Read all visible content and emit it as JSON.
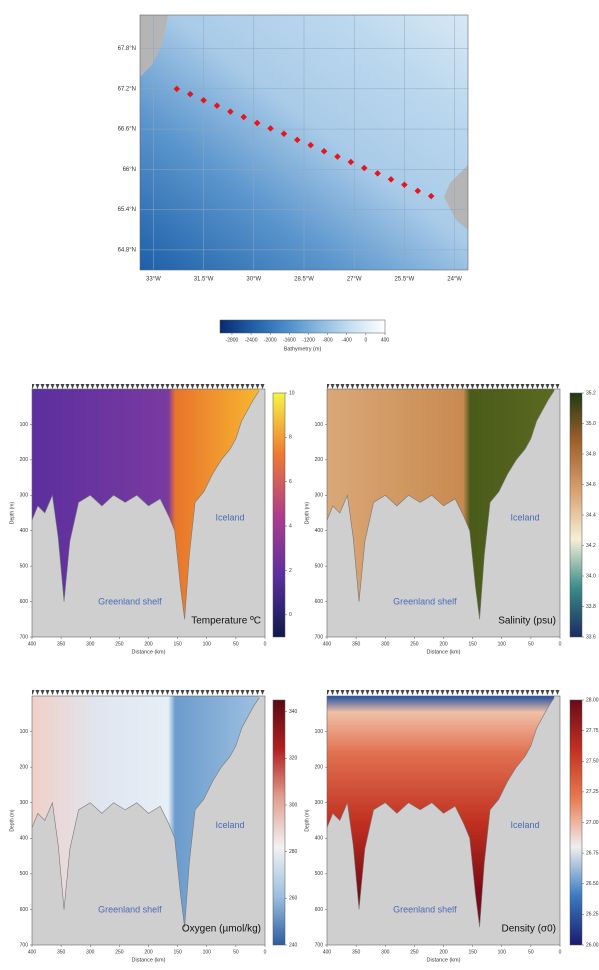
{
  "chart_data": [
    {
      "type": "map",
      "xlim": [
        -33.4,
        -23.6
      ],
      "ylim": [
        64.5,
        68.3
      ],
      "grid": true,
      "color": "#e8141c",
      "xticks": [
        {
          "value": -33,
          "label": "33°W"
        },
        {
          "value": -31.5,
          "label": "31.5°W"
        },
        {
          "value": -30,
          "label": "30°W"
        },
        {
          "value": -28.5,
          "label": "28.5°W"
        },
        {
          "value": -27,
          "label": "27°W"
        },
        {
          "value": -25.5,
          "label": "25.5°W"
        },
        {
          "value": -24,
          "label": "24°W"
        }
      ],
      "yticks": [
        {
          "value": 64.8,
          "label": "64.8°N"
        },
        {
          "value": 65.4,
          "label": "65.4°N"
        },
        {
          "value": 66,
          "label": "66°N"
        },
        {
          "value": 66.6,
          "label": "66.6°N"
        },
        {
          "value": 67.2,
          "label": "67.2°N"
        },
        {
          "value": 67.8,
          "label": "67.8°N"
        }
      ],
      "stations": {
        "lon": [
          -32.3,
          -31.9,
          -31.5,
          -31.1,
          -30.7,
          -30.3,
          -29.9,
          -29.5,
          -29.1,
          -28.7,
          -28.3,
          -27.9,
          -27.5,
          -27.1,
          -26.7,
          -26.3,
          -25.9,
          -25.5,
          -25.1,
          -24.7
        ],
        "lat": [
          67.2,
          67.12,
          67.03,
          66.95,
          66.86,
          66.78,
          66.69,
          66.61,
          66.53,
          66.44,
          66.36,
          66.27,
          66.19,
          66.11,
          66.02,
          65.94,
          65.85,
          65.77,
          65.68,
          65.6
        ]
      }
    },
    {
      "type": "colorbar",
      "title": "Bathymetry (m)",
      "clim": [
        -3050,
        400
      ],
      "ticks": [
        -2800,
        -2400,
        -2000,
        -1600,
        -1200,
        -800,
        -400,
        0,
        400
      ],
      "colors": [
        "#0a2a6e",
        "#1f5fa8",
        "#4a8cc8",
        "#8ab8e0",
        "#c8e0f2",
        "#ffffff"
      ]
    },
    {
      "type": "section",
      "title": "Temperature ºC",
      "xlabel": "Distance (km)",
      "ylabel": "Depth (m)",
      "labels": [
        "Greenland shelf",
        "Iceland"
      ],
      "xlim": [
        400,
        0
      ],
      "ylim": [
        700,
        0
      ],
      "xticks": [
        400,
        350,
        300,
        250,
        200,
        150,
        100,
        50,
        0
      ],
      "yticks": [
        100,
        200,
        300,
        400,
        500,
        600,
        700
      ],
      "bottom": {
        "distance": [
          400,
          390,
          378,
          365,
          355,
          345,
          335,
          320,
          300,
          280,
          260,
          240,
          220,
          200,
          180,
          165,
          155,
          145,
          138,
          130,
          120,
          105,
          90,
          75,
          60,
          50,
          40,
          30,
          20,
          10
        ],
        "depth": [
          370,
          330,
          350,
          300,
          420,
          600,
          430,
          320,
          300,
          330,
          300,
          320,
          300,
          330,
          310,
          360,
          400,
          560,
          650,
          470,
          320,
          290,
          240,
          200,
          170,
          140,
          90,
          60,
          30,
          5
        ]
      },
      "clim": [
        -1,
        10
      ],
      "cticks": [
        0,
        2,
        4,
        6,
        8,
        10
      ],
      "colors": [
        "#0d1a4a",
        "#5b2fa0",
        "#b03c8c",
        "#f07a30",
        "#f5f542"
      ]
    },
    {
      "type": "section",
      "title": "Salinity (psu)",
      "xlabel": "Distance (km)",
      "ylabel": "Depth (m)",
      "labels": [
        "Greenland shelf",
        "Iceland"
      ],
      "xlim": [
        400,
        0
      ],
      "ylim": [
        700,
        0
      ],
      "xticks": [
        400,
        350,
        300,
        250,
        200,
        150,
        100,
        50,
        0
      ],
      "yticks": [
        100,
        200,
        300,
        400,
        500,
        600,
        700
      ],
      "bottom": {
        "distance": [
          400,
          390,
          378,
          365,
          355,
          345,
          335,
          320,
          300,
          280,
          260,
          240,
          220,
          200,
          180,
          165,
          155,
          145,
          138,
          130,
          120,
          105,
          90,
          75,
          60,
          50,
          40,
          30,
          20,
          10
        ],
        "depth": [
          370,
          330,
          350,
          300,
          420,
          600,
          430,
          320,
          300,
          330,
          300,
          320,
          300,
          330,
          310,
          360,
          400,
          560,
          650,
          470,
          320,
          290,
          240,
          200,
          170,
          140,
          90,
          60,
          30,
          5
        ]
      },
      "clim": [
        33.6,
        35.2
      ],
      "cticks": [
        33.6,
        33.8,
        {
          "value": 34,
          "label": "34.0"
        },
        34.2,
        34.4,
        34.6,
        34.8,
        {
          "value": 35,
          "label": "35.0"
        },
        35.2
      ],
      "colors": [
        "#1b2a5e",
        "#3a8a8a",
        "#f5efd5",
        "#d9a070",
        "#a0602a",
        "#1f3a12"
      ]
    },
    {
      "type": "section",
      "title": "Oxygen (µmol/kg)",
      "xlabel": "Distance (km)",
      "ylabel": "Depth (m)",
      "labels": [
        "Greenland shelf",
        "Iceland"
      ],
      "xlim": [
        400,
        0
      ],
      "ylim": [
        700,
        0
      ],
      "xticks": [
        400,
        350,
        300,
        250,
        200,
        150,
        100,
        50,
        0
      ],
      "yticks": [
        100,
        200,
        300,
        400,
        500,
        600,
        700
      ],
      "bottom": {
        "distance": [
          400,
          390,
          378,
          365,
          355,
          345,
          335,
          320,
          300,
          280,
          260,
          240,
          220,
          200,
          180,
          165,
          155,
          145,
          138,
          130,
          120,
          105,
          90,
          75,
          60,
          50,
          40,
          30,
          20,
          10
        ],
        "depth": [
          370,
          330,
          350,
          300,
          420,
          600,
          430,
          320,
          300,
          330,
          300,
          320,
          300,
          330,
          310,
          360,
          400,
          560,
          650,
          470,
          320,
          290,
          240,
          200,
          170,
          140,
          90,
          60,
          30,
          5
        ]
      },
      "clim": [
        240,
        345
      ],
      "cticks": [
        240,
        260,
        280,
        300,
        320,
        340
      ],
      "colors": [
        "#2c5d9e",
        "#9cc0e0",
        "#f2f2f2",
        "#e0a090",
        "#b32020",
        "#5a0a15"
      ]
    },
    {
      "type": "section",
      "title": "Density (σ0)",
      "xlabel": "Distance (km)",
      "ylabel": "Depth (m)",
      "labels": [
        "Greenland shelf",
        "Iceland"
      ],
      "xlim": [
        400,
        0
      ],
      "ylim": [
        700,
        0
      ],
      "xticks": [
        400,
        350,
        300,
        250,
        200,
        150,
        100,
        50,
        0
      ],
      "yticks": [
        100,
        200,
        300,
        400,
        500,
        600,
        700
      ],
      "bottom": {
        "distance": [
          400,
          390,
          378,
          365,
          355,
          345,
          335,
          320,
          300,
          280,
          260,
          240,
          220,
          200,
          180,
          165,
          155,
          145,
          138,
          130,
          120,
          105,
          90,
          75,
          60,
          50,
          40,
          30,
          20,
          10
        ],
        "depth": [
          370,
          330,
          350,
          300,
          420,
          600,
          430,
          320,
          300,
          330,
          300,
          320,
          300,
          330,
          310,
          360,
          400,
          560,
          650,
          470,
          320,
          290,
          240,
          200,
          170,
          140,
          90,
          60,
          30,
          5
        ]
      },
      "clim": [
        26,
        28
      ],
      "cticks": [
        {
          "value": 26,
          "label": "26.00"
        },
        {
          "value": 26.25,
          "label": "26.25"
        },
        {
          "value": 26.5,
          "label": "26.50"
        },
        {
          "value": 26.75,
          "label": "26.75"
        },
        {
          "value": 27,
          "label": "27.00"
        },
        {
          "value": 27.25,
          "label": "27.25"
        },
        {
          "value": 27.5,
          "label": "27.50"
        },
        {
          "value": 27.75,
          "label": "27.75"
        },
        {
          "value": 28,
          "label": "28.00"
        }
      ],
      "colors": [
        "#1a1a6e",
        "#3a7ac0",
        "#f0eeee",
        "#e87a50",
        "#c03020",
        "#6a0a1a"
      ]
    }
  ]
}
